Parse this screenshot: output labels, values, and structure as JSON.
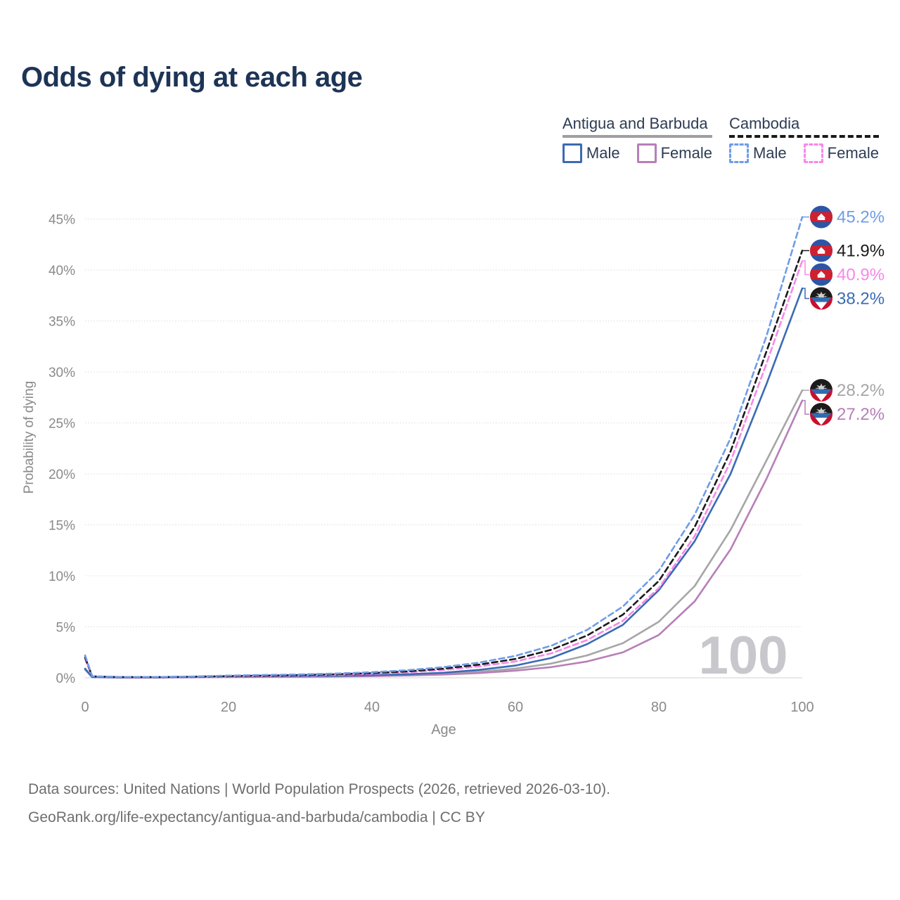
{
  "title": "Odds of dying at each age",
  "legend": {
    "groups": [
      {
        "name": "Antigua and Barbuda",
        "line_style": "solid",
        "underline_color": "#9e9ea3",
        "items": [
          {
            "label": "Male",
            "color": "#3a6bb4"
          },
          {
            "label": "Female",
            "color": "#b77fb8"
          }
        ]
      },
      {
        "name": "Cambodia",
        "line_style": "dashed",
        "underline_color": "#1a1a1a",
        "items": [
          {
            "label": "Male",
            "color": "#6f9ce8"
          },
          {
            "label": "Female",
            "color": "#f887ea"
          }
        ]
      }
    ]
  },
  "axes": {
    "x_title": "Age",
    "y_title": "Probability of dying",
    "x_ticks": [
      0,
      20,
      40,
      60,
      80,
      100
    ],
    "y_ticks": [
      0,
      5,
      10,
      15,
      20,
      25,
      30,
      35,
      40,
      45
    ],
    "y_tick_suffix": "%",
    "x_range": [
      0,
      100
    ],
    "y_range_percent": [
      0,
      45
    ]
  },
  "watermark": "100",
  "colors": {
    "title_text": "#1d3456",
    "axis_text": "#8a8a8a",
    "gridline": "#dcdcdc",
    "baseline": "#d2d2d2",
    "watermark": "#c7c7cc",
    "footer_text": "#6e6e6e"
  },
  "chart_data": {
    "type": "line",
    "title": "Odds of dying at each age",
    "xlabel": "Age",
    "ylabel": "Probability of dying",
    "xlim": [
      0,
      100
    ],
    "ylim_percent": [
      0,
      45
    ],
    "grid": "horizontal-dotted",
    "legend_position": "top-right",
    "x": [
      0,
      1,
      5,
      10,
      15,
      20,
      25,
      30,
      35,
      40,
      45,
      50,
      55,
      60,
      65,
      70,
      75,
      80,
      85,
      90,
      95,
      100
    ],
    "series": [
      {
        "name": "Antigua and Barbuda — Both sexes",
        "country": "Antigua and Barbuda",
        "sex": "both",
        "color": "#a6a6a6",
        "dashed": false,
        "flag": "ag",
        "end_label": "28.2%",
        "values": [
          0.85,
          0.06,
          0.035,
          0.035,
          0.06,
          0.1,
          0.12,
          0.14,
          0.17,
          0.22,
          0.29,
          0.4,
          0.6,
          0.9,
          1.4,
          2.2,
          3.4,
          5.5,
          9.0,
          14.5,
          21.3,
          28.2
        ]
      },
      {
        "name": "Antigua and Barbuda — Female",
        "country": "Antigua and Barbuda",
        "sex": "female",
        "color": "#b77fb8",
        "dashed": false,
        "flag": "ag",
        "end_label": "27.2%",
        "values": [
          0.8,
          0.06,
          0.03,
          0.03,
          0.05,
          0.07,
          0.09,
          0.11,
          0.13,
          0.17,
          0.23,
          0.32,
          0.47,
          0.7,
          1.05,
          1.6,
          2.5,
          4.2,
          7.5,
          12.6,
          19.5,
          27.2
        ]
      },
      {
        "name": "Antigua and Barbuda — Male",
        "country": "Antigua and Barbuda",
        "sex": "male",
        "color": "#3a6bb4",
        "dashed": false,
        "flag": "ag",
        "end_label": "38.2%",
        "values": [
          0.9,
          0.07,
          0.04,
          0.04,
          0.08,
          0.13,
          0.16,
          0.18,
          0.21,
          0.26,
          0.35,
          0.5,
          0.78,
          1.2,
          1.95,
          3.3,
          5.2,
          8.6,
          13.4,
          20.0,
          28.8,
          38.2
        ]
      },
      {
        "name": "Cambodia — Female",
        "country": "Cambodia",
        "sex": "female",
        "color": "#f887ea",
        "dashed": true,
        "flag": "kh",
        "end_label": "40.9%",
        "values": [
          1.85,
          0.13,
          0.07,
          0.06,
          0.09,
          0.13,
          0.17,
          0.22,
          0.29,
          0.39,
          0.54,
          0.77,
          1.12,
          1.6,
          2.4,
          3.7,
          5.6,
          8.8,
          13.9,
          21.2,
          30.8,
          40.9
        ]
      },
      {
        "name": "Cambodia — Both sexes",
        "country": "Cambodia",
        "sex": "both",
        "color": "#1a1a1a",
        "dashed": true,
        "flag": "kh",
        "end_label": "41.9%",
        "values": [
          2.0,
          0.14,
          0.07,
          0.07,
          0.11,
          0.17,
          0.22,
          0.27,
          0.35,
          0.46,
          0.63,
          0.9,
          1.3,
          1.85,
          2.75,
          4.15,
          6.2,
          9.5,
          14.8,
          22.2,
          32.0,
          41.9
        ]
      },
      {
        "name": "Cambodia — Male",
        "country": "Cambodia",
        "sex": "male",
        "color": "#6f9ce8",
        "dashed": true,
        "flag": "kh",
        "end_label": "45.2%",
        "values": [
          2.2,
          0.15,
          0.08,
          0.08,
          0.13,
          0.22,
          0.28,
          0.33,
          0.42,
          0.55,
          0.75,
          1.05,
          1.5,
          2.15,
          3.15,
          4.7,
          7.0,
          10.5,
          16.0,
          23.5,
          33.5,
          45.2
        ]
      }
    ],
    "end_labels": [
      "45.2%",
      "41.9%",
      "40.9%",
      "38.2%",
      "28.2%",
      "27.2%"
    ]
  },
  "footer": {
    "line1": "Data sources: United Nations | World Population Prospects (2026, retrieved 2026-03-10).",
    "line2": "GeoRank.org/life-expectancy/antigua-and-barbuda/cambodia | CC BY"
  }
}
